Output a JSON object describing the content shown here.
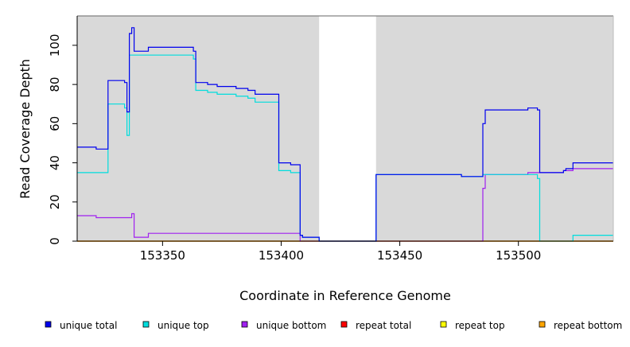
{
  "chart_data": {
    "type": "line",
    "title": "",
    "xlabel": "Coordinate in Reference Genome",
    "ylabel": "Read Coverage Depth",
    "xlim": [
      153314,
      153540
    ],
    "ylim": [
      0,
      115
    ],
    "x_ticks": [
      153350,
      153400,
      153450,
      153500
    ],
    "y_ticks": [
      0,
      20,
      40,
      60,
      80,
      100
    ],
    "background": "#d9d9d9",
    "gap": {
      "x_start": 153416,
      "x_end": 153440,
      "color": "#ffffff"
    },
    "legend_position": "bottom",
    "series": [
      {
        "name": "unique total",
        "color": "#0000ee",
        "points": [
          [
            153314,
            48
          ],
          [
            153322,
            48
          ],
          [
            153322,
            47
          ],
          [
            153327,
            47
          ],
          [
            153327,
            82
          ],
          [
            153334,
            82
          ],
          [
            153334,
            81
          ],
          [
            153335,
            81
          ],
          [
            153335,
            66
          ],
          [
            153336,
            66
          ],
          [
            153336,
            106
          ],
          [
            153337,
            106
          ],
          [
            153337,
            109
          ],
          [
            153338,
            109
          ],
          [
            153338,
            97
          ],
          [
            153344,
            97
          ],
          [
            153344,
            99
          ],
          [
            153363,
            99
          ],
          [
            153363,
            97
          ],
          [
            153364,
            97
          ],
          [
            153364,
            81
          ],
          [
            153369,
            81
          ],
          [
            153369,
            80
          ],
          [
            153373,
            80
          ],
          [
            153373,
            79
          ],
          [
            153381,
            79
          ],
          [
            153381,
            78
          ],
          [
            153386,
            78
          ],
          [
            153386,
            77
          ],
          [
            153389,
            77
          ],
          [
            153389,
            75
          ],
          [
            153399,
            75
          ],
          [
            153399,
            40
          ],
          [
            153404,
            40
          ],
          [
            153404,
            39
          ],
          [
            153408,
            39
          ],
          [
            153408,
            3
          ],
          [
            153409,
            3
          ],
          [
            153409,
            2
          ],
          [
            153416,
            2
          ],
          [
            153416,
            0
          ],
          [
            153440,
            0
          ],
          [
            153440,
            34
          ],
          [
            153476,
            34
          ],
          [
            153476,
            33
          ],
          [
            153485,
            33
          ],
          [
            153485,
            60
          ],
          [
            153486,
            60
          ],
          [
            153486,
            67
          ],
          [
            153504,
            67
          ],
          [
            153504,
            68
          ],
          [
            153508,
            68
          ],
          [
            153508,
            67
          ],
          [
            153509,
            67
          ],
          [
            153509,
            35
          ],
          [
            153519,
            35
          ],
          [
            153519,
            36
          ],
          [
            153520,
            36
          ],
          [
            153520,
            37
          ],
          [
            153523,
            37
          ],
          [
            153523,
            40
          ],
          [
            153540,
            40
          ]
        ]
      },
      {
        "name": "unique top",
        "color": "#00dddd",
        "points": [
          [
            153314,
            35
          ],
          [
            153327,
            35
          ],
          [
            153327,
            70
          ],
          [
            153334,
            70
          ],
          [
            153334,
            68
          ],
          [
            153335,
            68
          ],
          [
            153335,
            54
          ],
          [
            153336,
            54
          ],
          [
            153336,
            95
          ],
          [
            153363,
            95
          ],
          [
            153363,
            93
          ],
          [
            153364,
            93
          ],
          [
            153364,
            77
          ],
          [
            153369,
            77
          ],
          [
            153369,
            76
          ],
          [
            153373,
            76
          ],
          [
            153373,
            75
          ],
          [
            153381,
            75
          ],
          [
            153381,
            74
          ],
          [
            153386,
            74
          ],
          [
            153386,
            73
          ],
          [
            153389,
            73
          ],
          [
            153389,
            71
          ],
          [
            153399,
            71
          ],
          [
            153399,
            36
          ],
          [
            153404,
            36
          ],
          [
            153404,
            35
          ],
          [
            153408,
            35
          ],
          [
            153408,
            3
          ],
          [
            153409,
            3
          ],
          [
            153409,
            2
          ],
          [
            153416,
            2
          ],
          [
            153416,
            0
          ],
          [
            153440,
            0
          ],
          [
            153440,
            34
          ],
          [
            153476,
            34
          ],
          [
            153476,
            33
          ],
          [
            153485,
            33
          ],
          [
            153485,
            34
          ],
          [
            153508,
            34
          ],
          [
            153508,
            32
          ],
          [
            153509,
            32
          ],
          [
            153509,
            0
          ],
          [
            153523,
            0
          ],
          [
            153523,
            3
          ],
          [
            153540,
            3
          ]
        ]
      },
      {
        "name": "unique bottom",
        "color": "#a020f0",
        "points": [
          [
            153314,
            13
          ],
          [
            153322,
            13
          ],
          [
            153322,
            12
          ],
          [
            153337,
            12
          ],
          [
            153337,
            14
          ],
          [
            153338,
            14
          ],
          [
            153338,
            2
          ],
          [
            153344,
            2
          ],
          [
            153344,
            4
          ],
          [
            153408,
            4
          ],
          [
            153408,
            0
          ],
          [
            153485,
            0
          ],
          [
            153485,
            27
          ],
          [
            153486,
            27
          ],
          [
            153486,
            34
          ],
          [
            153504,
            34
          ],
          [
            153504,
            35
          ],
          [
            153519,
            35
          ],
          [
            153519,
            36
          ],
          [
            153523,
            36
          ],
          [
            153523,
            37
          ],
          [
            153540,
            37
          ]
        ]
      },
      {
        "name": "repeat total",
        "color": "#ff0000",
        "points": [
          [
            153314,
            0
          ],
          [
            153540,
            0
          ]
        ]
      },
      {
        "name": "repeat top",
        "color": "#ffff00",
        "points": [
          [
            153314,
            0
          ],
          [
            153540,
            0
          ]
        ]
      },
      {
        "name": "repeat bottom",
        "color": "#ffa500",
        "points": [
          [
            153314,
            0
          ],
          [
            153540,
            0
          ]
        ]
      }
    ]
  }
}
